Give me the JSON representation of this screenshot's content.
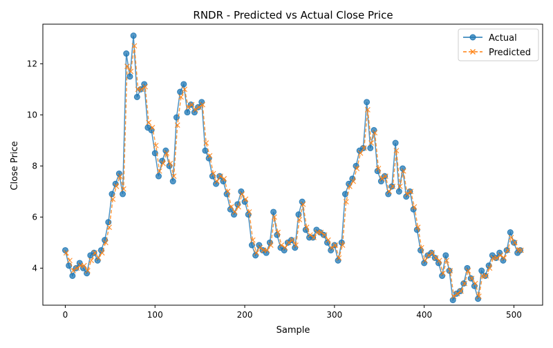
{
  "chart_data": {
    "type": "line",
    "title": "RNDR - Predicted vs Actual Close Price",
    "xlabel": "Sample",
    "ylabel": "Close Price",
    "xlim": [
      -25,
      532
    ],
    "ylim": [
      2.55,
      13.55
    ],
    "xticks": [
      0,
      100,
      200,
      300,
      400,
      500
    ],
    "yticks": [
      4,
      6,
      8,
      10,
      12
    ],
    "grid": false,
    "legend_position": "top-right",
    "series": [
      {
        "name": "Actual",
        "color": "#1f77b4",
        "marker": "circle",
        "linestyle": "solid",
        "x": [
          0,
          4,
          8,
          12,
          16,
          20,
          24,
          28,
          32,
          36,
          40,
          44,
          48,
          52,
          56,
          60,
          64,
          68,
          72,
          76,
          80,
          84,
          88,
          92,
          96,
          100,
          104,
          108,
          112,
          116,
          120,
          124,
          128,
          132,
          136,
          140,
          144,
          148,
          152,
          156,
          160,
          164,
          168,
          172,
          176,
          180,
          184,
          188,
          192,
          196,
          200,
          204,
          208,
          212,
          216,
          220,
          224,
          228,
          232,
          236,
          240,
          244,
          248,
          252,
          256,
          260,
          264,
          268,
          272,
          276,
          280,
          284,
          288,
          292,
          296,
          300,
          304,
          308,
          312,
          316,
          320,
          324,
          328,
          332,
          336,
          340,
          344,
          348,
          352,
          356,
          360,
          364,
          368,
          372,
          376,
          380,
          384,
          388,
          392,
          396,
          400,
          404,
          408,
          412,
          416,
          420,
          424,
          428,
          432,
          436,
          440,
          444,
          448,
          452,
          456,
          460,
          464,
          468,
          472,
          476,
          480,
          484,
          488,
          492,
          496,
          500,
          504,
          507
        ],
        "y": [
          4.7,
          4.1,
          3.7,
          4.0,
          4.2,
          4.0,
          3.8,
          4.5,
          4.6,
          4.3,
          4.7,
          5.1,
          5.8,
          6.9,
          7.3,
          7.7,
          6.9,
          12.4,
          11.5,
          13.1,
          10.7,
          11.0,
          11.2,
          9.5,
          9.4,
          8.5,
          7.6,
          8.2,
          8.6,
          8.0,
          7.4,
          9.9,
          10.9,
          11.2,
          10.1,
          10.4,
          10.1,
          10.3,
          10.5,
          8.6,
          8.3,
          7.6,
          7.3,
          7.6,
          7.4,
          6.9,
          6.3,
          6.1,
          6.5,
          7.0,
          6.6,
          6.1,
          4.9,
          4.5,
          4.9,
          4.7,
          4.6,
          5.0,
          6.2,
          5.3,
          4.8,
          4.7,
          5.0,
          5.1,
          4.8,
          6.1,
          6.6,
          5.5,
          5.2,
          5.2,
          5.5,
          5.4,
          5.3,
          5.0,
          4.7,
          4.9,
          4.3,
          5.0,
          6.9,
          7.3,
          7.5,
          8.0,
          8.6,
          8.7,
          10.5,
          8.7,
          9.4,
          7.8,
          7.4,
          7.6,
          6.9,
          7.2,
          8.9,
          7.0,
          7.9,
          6.8,
          7.0,
          6.3,
          5.5,
          4.7,
          4.2,
          4.5,
          4.6,
          4.4,
          4.2,
          3.7,
          4.5,
          3.9,
          2.75,
          3.0,
          3.1,
          3.4,
          4.0,
          3.6,
          3.3,
          2.8,
          3.9,
          3.7,
          4.1,
          4.5,
          4.4,
          4.6,
          4.3,
          4.7,
          5.4,
          5.0,
          4.6,
          4.7
        ]
      },
      {
        "name": "Predicted",
        "color": "#ff7f0e",
        "marker": "x",
        "linestyle": "dashed",
        "x": [
          1,
          5,
          9,
          13,
          17,
          21,
          25,
          29,
          33,
          37,
          41,
          45,
          49,
          53,
          57,
          61,
          65,
          69,
          73,
          77,
          81,
          85,
          89,
          93,
          97,
          101,
          105,
          109,
          113,
          117,
          121,
          125,
          129,
          133,
          137,
          141,
          145,
          149,
          153,
          157,
          161,
          165,
          169,
          173,
          177,
          181,
          185,
          189,
          193,
          197,
          201,
          205,
          209,
          213,
          217,
          221,
          225,
          229,
          233,
          237,
          241,
          245,
          249,
          253,
          257,
          261,
          265,
          269,
          273,
          277,
          281,
          285,
          289,
          293,
          297,
          301,
          305,
          309,
          313,
          317,
          321,
          325,
          329,
          333,
          337,
          341,
          345,
          349,
          353,
          357,
          361,
          365,
          369,
          373,
          377,
          381,
          385,
          389,
          393,
          397,
          401,
          405,
          409,
          413,
          417,
          421,
          425,
          429,
          433,
          437,
          441,
          445,
          449,
          453,
          457,
          461,
          465,
          469,
          473,
          477,
          481,
          485,
          489,
          493,
          497,
          501,
          505,
          508
        ],
        "y": [
          4.6,
          4.3,
          3.9,
          4.0,
          4.1,
          4.1,
          3.9,
          4.3,
          4.6,
          4.4,
          4.6,
          5.0,
          5.6,
          6.7,
          7.2,
          7.6,
          7.1,
          11.9,
          11.7,
          12.7,
          11.0,
          11.0,
          11.1,
          9.7,
          9.5,
          8.8,
          7.8,
          8.1,
          8.5,
          8.1,
          7.6,
          9.6,
          10.7,
          11.0,
          10.3,
          10.4,
          10.2,
          10.3,
          10.4,
          8.9,
          8.4,
          7.7,
          7.4,
          7.6,
          7.5,
          7.0,
          6.4,
          6.2,
          6.4,
          6.9,
          6.7,
          6.2,
          5.1,
          4.6,
          4.8,
          4.7,
          4.7,
          4.9,
          6.0,
          5.4,
          4.9,
          4.8,
          5.0,
          5.1,
          4.9,
          5.9,
          6.5,
          5.6,
          5.3,
          5.2,
          5.4,
          5.4,
          5.3,
          5.1,
          4.8,
          4.9,
          4.4,
          4.9,
          6.6,
          7.2,
          7.4,
          7.9,
          8.5,
          8.7,
          10.2,
          8.9,
          9.3,
          7.9,
          7.5,
          7.6,
          7.0,
          7.2,
          8.6,
          7.2,
          7.8,
          6.9,
          7.0,
          6.4,
          5.6,
          4.8,
          4.3,
          4.5,
          4.6,
          4.4,
          4.3,
          3.8,
          4.3,
          3.9,
          2.9,
          3.0,
          3.1,
          3.4,
          3.9,
          3.6,
          3.4,
          2.9,
          3.7,
          3.7,
          4.0,
          4.4,
          4.4,
          4.5,
          4.4,
          4.7,
          5.2,
          5.0,
          4.7,
          4.7
        ]
      }
    ]
  }
}
